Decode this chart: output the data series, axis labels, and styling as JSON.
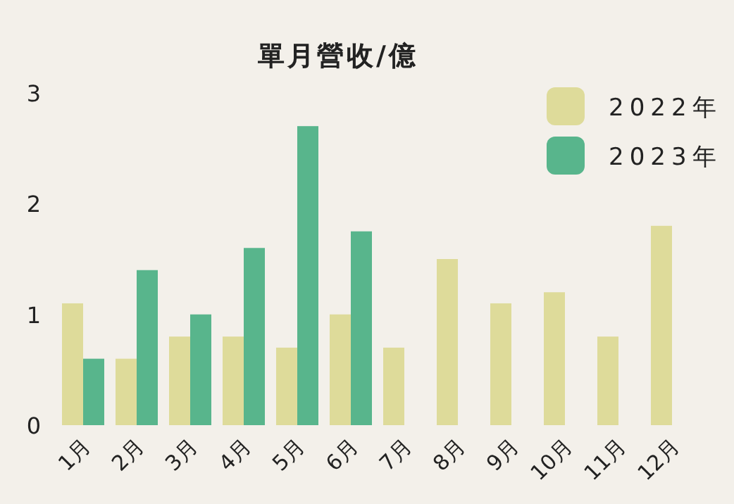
{
  "chart_data": {
    "type": "bar",
    "title": "單月營收/億",
    "categories": [
      "1月",
      "2月",
      "3月",
      "4月",
      "5月",
      "6月",
      "7月",
      "8月",
      "9月",
      "10月",
      "11月",
      "12月"
    ],
    "series": [
      {
        "name": "2022年",
        "color": "#dedb9a",
        "values": [
          1.1,
          0.6,
          0.8,
          0.8,
          0.7,
          1.0,
          0.7,
          1.5,
          1.1,
          1.2,
          0.8,
          1.8
        ]
      },
      {
        "name": "2023年",
        "color": "#58b58c",
        "values": [
          0.6,
          1.4,
          1.0,
          1.6,
          2.7,
          1.75,
          null,
          null,
          null,
          null,
          null,
          null
        ]
      }
    ],
    "ylim": [
      0,
      3
    ],
    "yticks": [
      0,
      1,
      2,
      3
    ],
    "legend": "top right"
  }
}
